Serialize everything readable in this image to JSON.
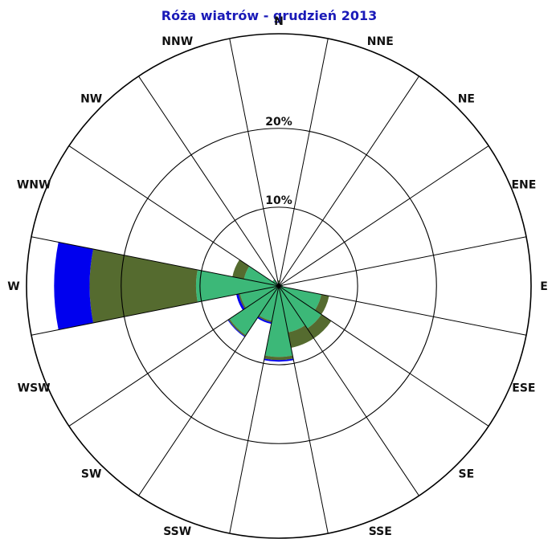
{
  "chart_data": {
    "type": "windrose",
    "title": "Róża wiatrów - grudzień 2013",
    "directions": [
      "N",
      "NNE",
      "NE",
      "ENE",
      "E",
      "ESE",
      "SE",
      "SSE",
      "S",
      "SSW",
      "SW",
      "WSW",
      "W",
      "WNW",
      "NW",
      "NNW"
    ],
    "ring_labels": [
      "10%",
      "20%"
    ],
    "rmax_percent": 32,
    "grid": true,
    "colors": {
      "ring_line": "#000000",
      "spoke_line": "#000000",
      "title": "#1a1ab8",
      "outer_edge": "#ff0000"
    },
    "series": [
      {
        "color": "#3cb878",
        "values": [
          0.5,
          0.3,
          0.3,
          0.4,
          0.5,
          5.5,
          6.5,
          6.0,
          9.0,
          4.5,
          7.5,
          5.0,
          10.5,
          4.5,
          1.0,
          0.3
        ]
      },
      {
        "color": "#556b2f",
        "values": [
          0.2,
          0,
          0,
          0,
          0,
          1.0,
          1.5,
          2.0,
          0.4,
          0.2,
          0.2,
          0.2,
          13.5,
          1.5,
          0,
          0
        ]
      },
      {
        "color": "#0000ee",
        "values": [
          0,
          0,
          0,
          0,
          0,
          0,
          0,
          0,
          0.2,
          0.2,
          0.1,
          0.3,
          4.5,
          0,
          0,
          0
        ]
      }
    ]
  }
}
